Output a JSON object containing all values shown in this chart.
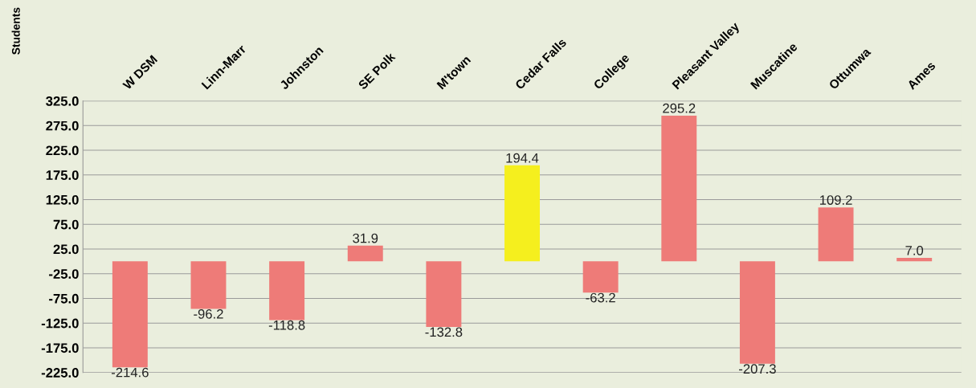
{
  "chart_data": {
    "type": "bar",
    "ylabel": "Students",
    "categories": [
      "W DSM",
      "Linn-Marr",
      "Johnston",
      "SE Polk",
      "M'town",
      "Cedar Falls",
      "College",
      "Pleasant Valley",
      "Muscatine",
      "Ottumwa",
      "Ames"
    ],
    "values": [
      -214.6,
      -96.2,
      -118.8,
      31.9,
      -132.8,
      194.4,
      -63.2,
      295.2,
      -207.3,
      109.2,
      7.0
    ],
    "value_labels": [
      "-214.6",
      "-96.2",
      "-118.8",
      "31.9",
      "-132.8",
      "194.4",
      "-63.2",
      "295.2",
      "-207.3",
      "109.2",
      "7.0"
    ],
    "colors": [
      "#ee7b78",
      "#ee7b78",
      "#ee7b78",
      "#ee7b78",
      "#ee7b78",
      "#f5ef1e",
      "#ee7b78",
      "#ee7b78",
      "#ee7b78",
      "#ee7b78",
      "#ee7b78"
    ],
    "ylim": [
      -225,
      325
    ],
    "yticks": [
      {
        "value": -225,
        "label": "-225.0"
      },
      {
        "value": -175,
        "label": "-175.0"
      },
      {
        "value": -125,
        "label": "-125.0"
      },
      {
        "value": -75,
        "label": "-75.0"
      },
      {
        "value": -25,
        "label": "-25.0"
      },
      {
        "value": 25,
        "label": "25.0"
      },
      {
        "value": 75,
        "label": "75.0"
      },
      {
        "value": 125,
        "label": "125.0"
      },
      {
        "value": 175,
        "label": "175.0"
      },
      {
        "value": 225,
        "label": "225.0"
      },
      {
        "value": 275,
        "label": "275.0"
      },
      {
        "value": 325,
        "label": "325.0"
      }
    ],
    "grid": "y"
  }
}
